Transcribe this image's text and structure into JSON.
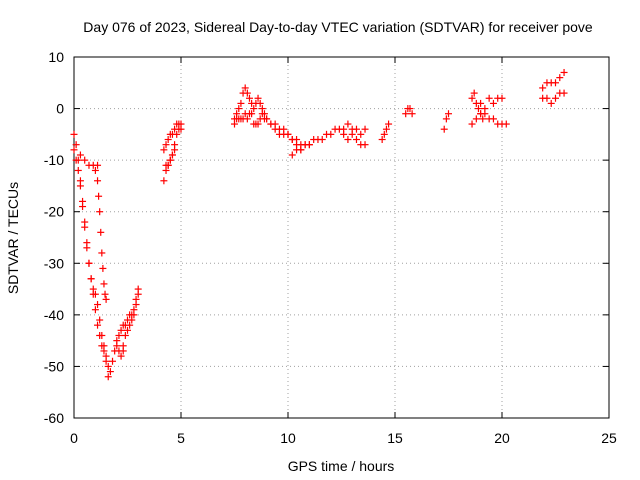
{
  "chart_data": {
    "type": "scatter",
    "title": "Day 076 of 2023, Sidereal Day-to-day VTEC variation (SDTVAR) for receiver pove",
    "xlabel": "GPS time / hours",
    "ylabel": "SDTVAR / TECUs",
    "xlim": [
      0,
      25
    ],
    "ylim": [
      -60,
      10
    ],
    "xticks": [
      0,
      5,
      10,
      15,
      20,
      25
    ],
    "yticks": [
      -60,
      -50,
      -40,
      -30,
      -20,
      -10,
      0,
      10
    ],
    "grid": true,
    "marker": "+",
    "marker_color": "#ff0000",
    "series": [
      {
        "name": "SDTVAR",
        "segments": [
          {
            "x": [
              0.0,
              0.1,
              0.2,
              0.3,
              0.4,
              0.5,
              0.6,
              0.7,
              0.8,
              0.9,
              1.0,
              1.1,
              1.2,
              1.3,
              1.4,
              1.5,
              1.6,
              1.7,
              1.8,
              1.9,
              2.0,
              2.1,
              2.2,
              2.3
            ],
            "y": [
              -5,
              -7,
              -10,
              -14,
              -18,
              -22,
              -26,
              -30,
              -33,
              -36,
              -39,
              -42,
              -44,
              -46,
              -47,
              -48,
              -50,
              -51,
              -49,
              -47,
              -46,
              -47,
              -48,
              -47
            ]
          },
          {
            "x": [
              0.0,
              0.1,
              0.2,
              0.3,
              0.4,
              0.5,
              0.6,
              0.7,
              0.8,
              0.9,
              1.0,
              1.1,
              1.2,
              1.3,
              1.4,
              1.5,
              1.6
            ],
            "y": [
              -8,
              -10,
              -12,
              -15,
              -19,
              -23,
              -27,
              -30,
              -33,
              -35,
              -36,
              -38,
              -41,
              -44,
              -46,
              -49,
              -52
            ]
          },
          {
            "x": [
              0.3,
              0.5,
              0.7,
              0.9,
              1.1
            ],
            "y": [
              -9,
              -10,
              -11,
              -11,
              -11
            ]
          },
          {
            "x": [
              1.0,
              1.1,
              1.15,
              1.2,
              1.25,
              1.3,
              1.35,
              1.4,
              1.45,
              1.5
            ],
            "y": [
              -12,
              -14,
              -17,
              -20,
              -24,
              -28,
              -31,
              -34,
              -36,
              -37
            ]
          },
          {
            "x": [
              2.3,
              2.4,
              2.5,
              2.6,
              2.7,
              2.8,
              2.9,
              3.0
            ],
            "y": [
              -46,
              -44,
              -43,
              -42,
              -41,
              -40,
              -38,
              -36
            ]
          },
          {
            "x": [
              2.0,
              2.1,
              2.2,
              2.3,
              2.4,
              2.5,
              2.6,
              2.7,
              2.8,
              2.9,
              3.0
            ],
            "y": [
              -45,
              -44,
              -43,
              -42,
              -42,
              -41,
              -40,
              -40,
              -39,
              -37,
              -35
            ]
          },
          {
            "x": [
              4.2,
              4.3,
              4.4,
              4.5,
              4.6,
              4.7,
              4.8,
              4.9,
              5.0
            ],
            "y": [
              -14,
              -12,
              -11,
              -10,
              -9,
              -7,
              -5,
              -4,
              -4
            ]
          },
          {
            "x": [
              4.2,
              4.3,
              4.4,
              4.5,
              4.6,
              4.7,
              4.8,
              4.9,
              5.0
            ],
            "y": [
              -8,
              -7,
              -6,
              -5,
              -5,
              -4,
              -3,
              -3,
              -3
            ]
          },
          {
            "x": [
              4.3,
              4.4,
              4.5,
              4.6,
              4.7
            ],
            "y": [
              -11,
              -11,
              -10,
              -9,
              -8
            ]
          },
          {
            "x": [
              7.5,
              7.6,
              7.7,
              7.8,
              7.9,
              8.0,
              8.1,
              8.2,
              8.3
            ],
            "y": [
              -2,
              -1,
              0,
              1,
              3,
              4,
              3,
              2,
              1
            ]
          },
          {
            "x": [
              7.5,
              7.6,
              7.7,
              7.8,
              7.9,
              8.0,
              8.1,
              8.2,
              8.3,
              8.4,
              8.5,
              8.6,
              8.7,
              8.8,
              8.9,
              9.0,
              9.2,
              9.4,
              9.6,
              9.8,
              10.0,
              10.2,
              10.4,
              10.6,
              10.8,
              11.0
            ],
            "y": [
              -3,
              -2,
              -2,
              -2,
              -2,
              -1,
              -2,
              -1,
              -1,
              0,
              1,
              2,
              1,
              0,
              -1,
              -2,
              -3,
              -4,
              -5,
              -5,
              -5,
              -6,
              -6,
              -7,
              -7,
              -7
            ]
          },
          {
            "x": [
              8.4,
              8.5,
              8.6,
              8.7,
              8.8,
              8.9,
              9.0,
              9.2,
              9.4,
              9.6,
              9.8,
              10.0,
              10.2,
              10.4,
              10.6
            ],
            "y": [
              -3,
              -3,
              -3,
              -2,
              -1,
              -2,
              -2,
              -3,
              -3,
              -4,
              -4,
              -5,
              -6,
              -7,
              -8
            ]
          },
          {
            "x": [
              10.2,
              10.4,
              10.6,
              10.8,
              11.0,
              11.2,
              11.4,
              11.6,
              11.8,
              12.0,
              12.2,
              12.4,
              12.6,
              12.8,
              13.0,
              13.2,
              13.4,
              13.6
            ],
            "y": [
              -9,
              -8,
              -8,
              -7,
              -7,
              -6,
              -6,
              -6,
              -5,
              -5,
              -4,
              -4,
              -5,
              -6,
              -5,
              -6,
              -7,
              -7
            ]
          },
          {
            "x": [
              12.6,
              12.8,
              13.0,
              13.2,
              13.4,
              13.6
            ],
            "y": [
              -4,
              -3,
              -4,
              -4,
              -5,
              -4
            ]
          },
          {
            "x": [
              14.4,
              14.5,
              14.6,
              14.7
            ],
            "y": [
              -6,
              -5,
              -4,
              -3
            ]
          },
          {
            "x": [
              15.5,
              15.6,
              15.7,
              15.8
            ],
            "y": [
              -1,
              0,
              0,
              -1
            ]
          },
          {
            "x": [
              17.3,
              17.4,
              17.5
            ],
            "y": [
              -4,
              -2,
              -1
            ]
          },
          {
            "x": [
              18.6,
              18.7,
              18.8,
              18.9,
              19.0,
              19.1
            ],
            "y": [
              2,
              3,
              1,
              0,
              -1,
              -2
            ]
          },
          {
            "x": [
              18.6,
              18.8,
              19.0,
              19.2,
              19.4,
              19.6,
              19.8,
              20.0,
              20.2
            ],
            "y": [
              -3,
              -2,
              -1,
              -1,
              -2,
              -2,
              -3,
              -3,
              -3
            ]
          },
          {
            "x": [
              19.0,
              19.2,
              19.4,
              19.6,
              19.8,
              20.0
            ],
            "y": [
              1,
              0,
              2,
              1,
              2,
              2
            ]
          },
          {
            "x": [
              21.9,
              22.1,
              22.3,
              22.5,
              22.7,
              22.9
            ],
            "y": [
              4,
              5,
              5,
              5,
              6,
              7
            ]
          },
          {
            "x": [
              21.9,
              22.1,
              22.3,
              22.5,
              22.7,
              22.9
            ],
            "y": [
              2,
              2,
              1,
              2,
              3,
              3
            ]
          }
        ]
      }
    ]
  }
}
